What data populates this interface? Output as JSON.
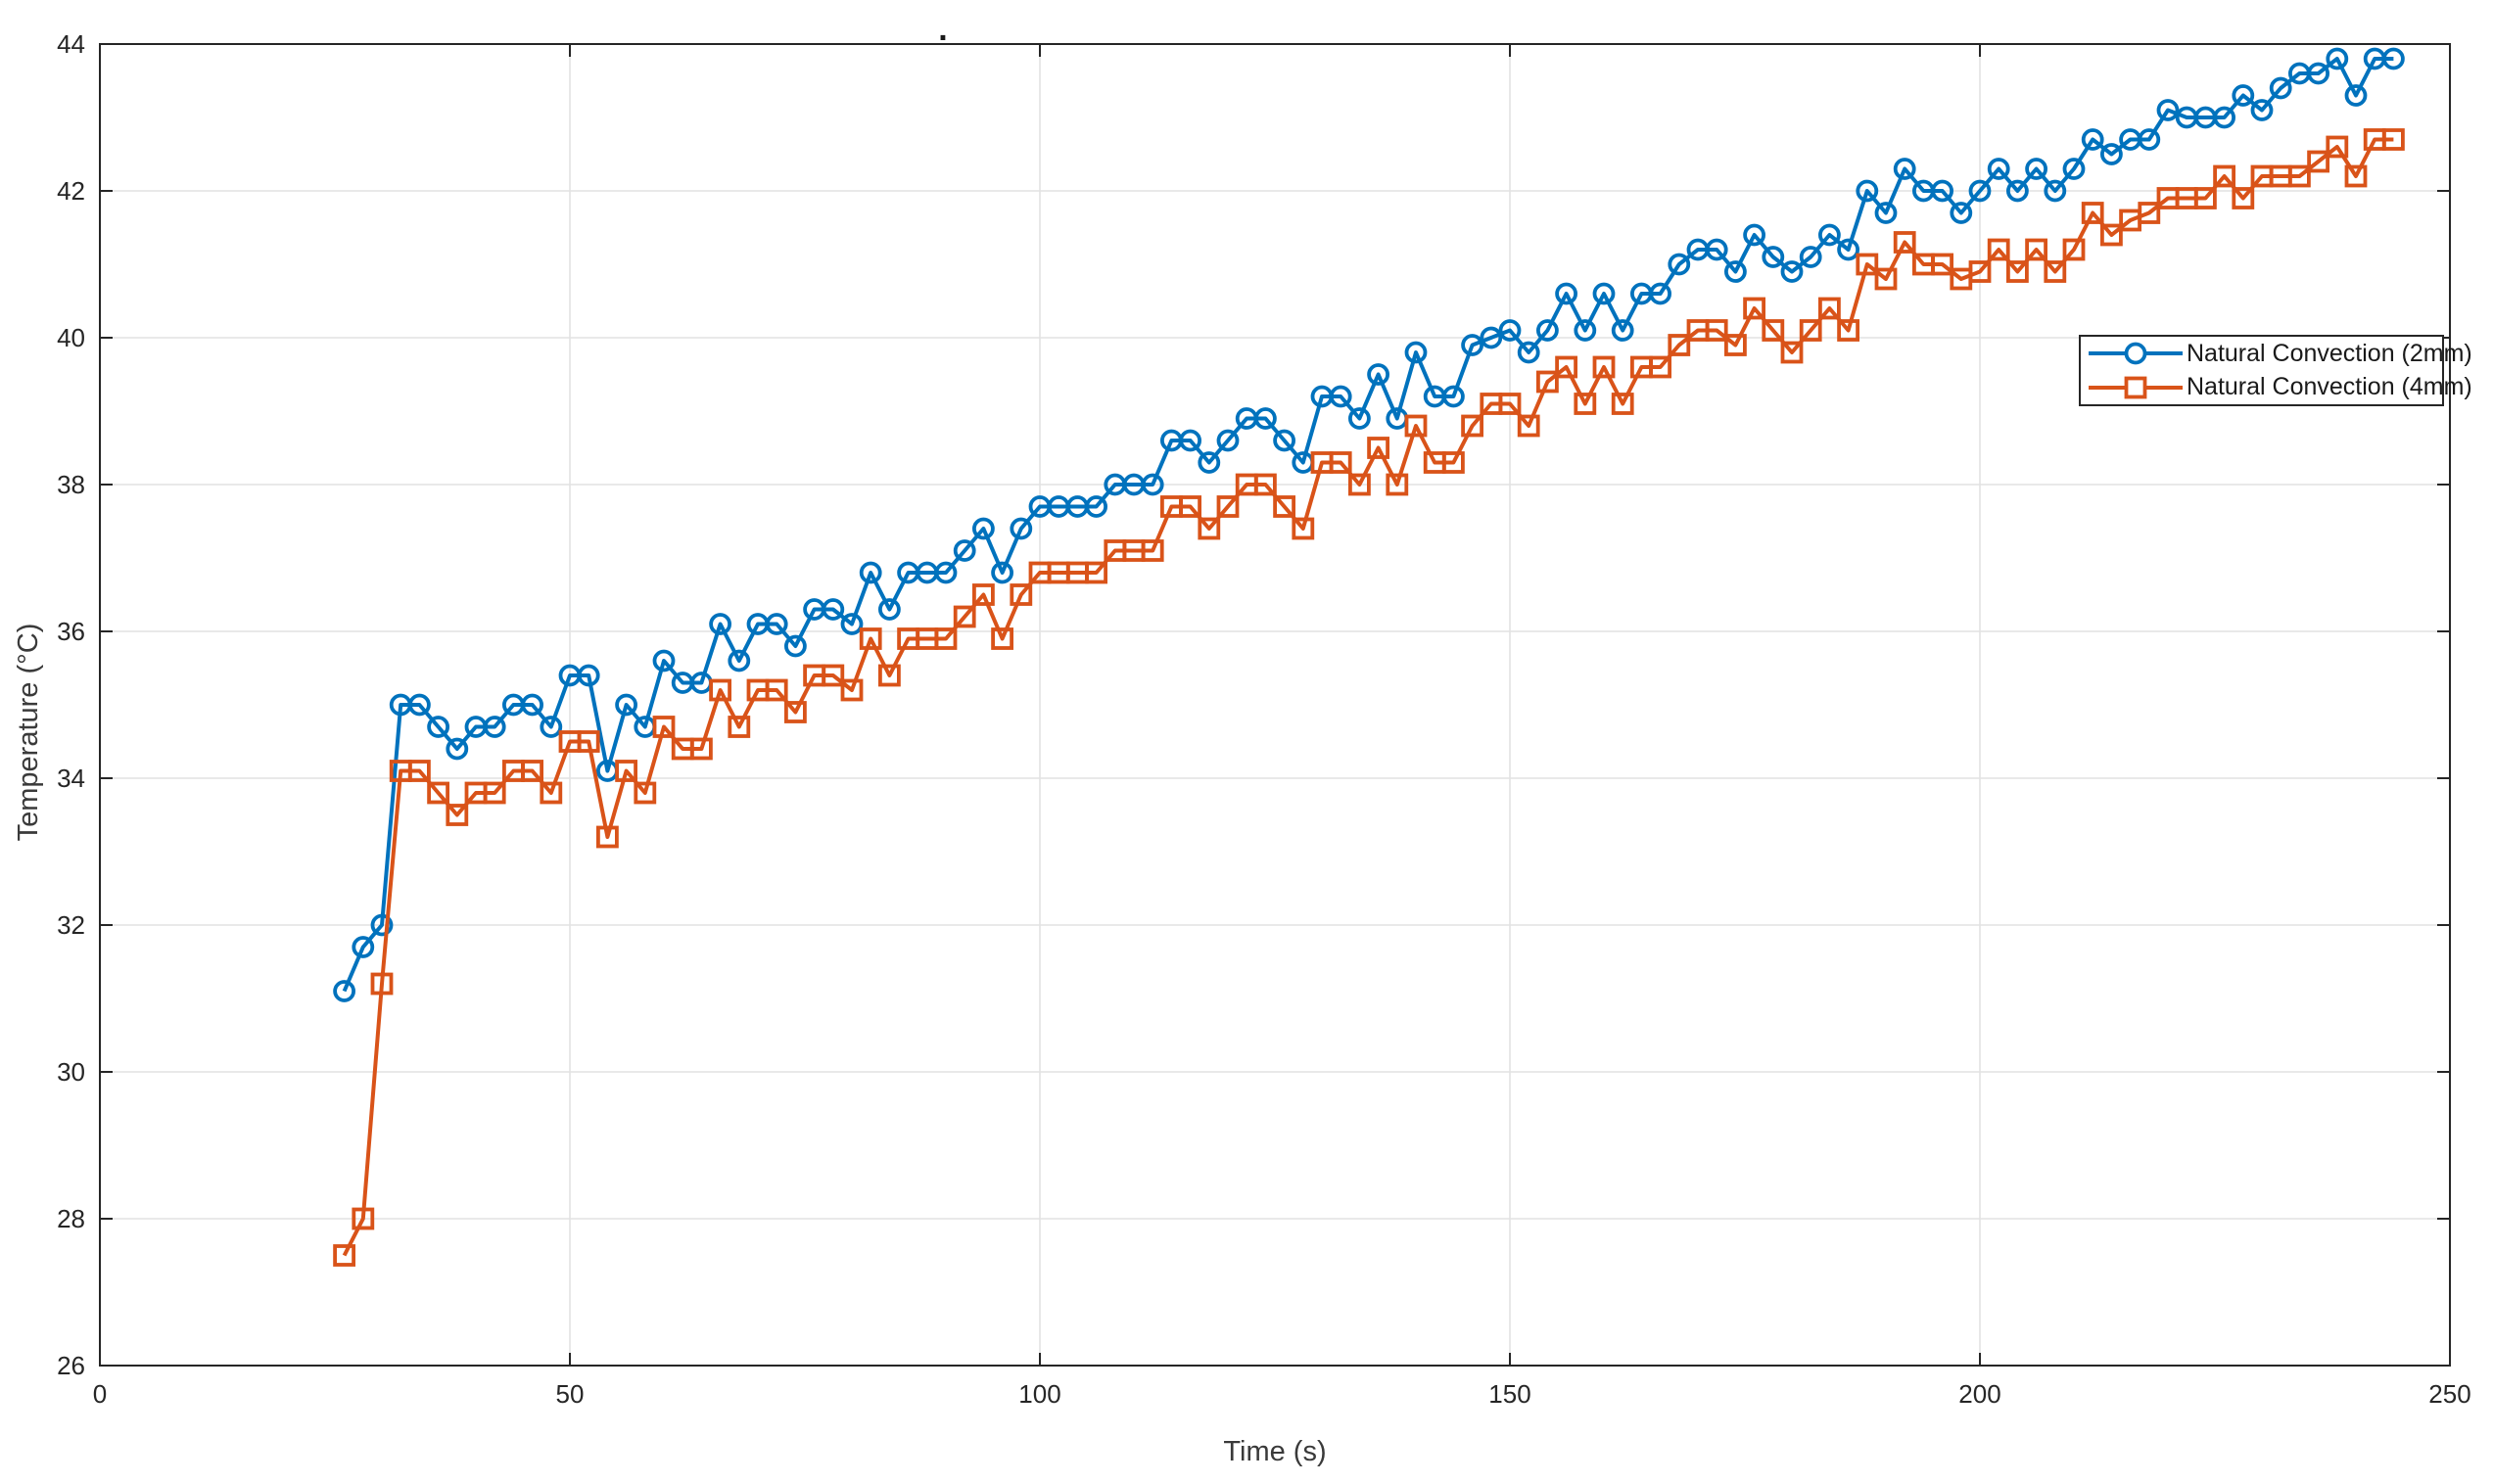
{
  "figure": {
    "title_dot": ".",
    "xlabel": "Time (s)",
    "ylabel": "Temperature (°C)"
  },
  "legend": {
    "entries": [
      {
        "label": "Natural Convection (2mm)",
        "color": "#0072BD",
        "marker": "circle"
      },
      {
        "label": "Natural Convection (4mm)",
        "color": "#D95319",
        "marker": "square"
      }
    ]
  },
  "chart_data": {
    "type": "line",
    "title": ".",
    "xlabel": "Time (s)",
    "ylabel": "Temperature (°C)",
    "xlim": [
      0,
      250
    ],
    "ylim": [
      26,
      44
    ],
    "xticks": [
      0,
      50,
      100,
      150,
      200,
      250
    ],
    "yticks": [
      26,
      28,
      30,
      32,
      34,
      36,
      38,
      40,
      42,
      44
    ],
    "grid": true,
    "legend_position": "inside-right-upper-middle",
    "grid_color": "#E2E2E2",
    "axis_color": "#262626",
    "x": [
      26,
      28,
      30,
      32,
      34,
      36,
      38,
      40,
      42,
      44,
      46,
      48,
      50,
      52,
      54,
      56,
      58,
      60,
      62,
      64,
      66,
      68,
      70,
      72,
      74,
      76,
      78,
      80,
      82,
      84,
      86,
      88,
      90,
      92,
      94,
      96,
      98,
      100,
      102,
      104,
      106,
      108,
      110,
      112,
      114,
      116,
      118,
      120,
      122,
      124,
      126,
      128,
      130,
      132,
      134,
      136,
      138,
      140,
      142,
      144,
      146,
      148,
      150,
      152,
      154,
      156,
      158,
      160,
      162,
      164,
      166,
      168,
      170,
      172,
      174,
      176,
      178,
      180,
      182,
      184,
      186,
      188,
      190,
      192,
      194,
      196,
      198,
      200,
      202,
      204,
      206,
      208,
      210,
      212,
      214,
      216,
      218,
      220,
      222,
      224,
      226,
      228,
      230,
      232,
      234,
      236,
      238,
      240,
      242,
      244
    ],
    "series": [
      {
        "name": "Natural Convection (2mm)",
        "color": "#0072BD",
        "marker": "circle",
        "values": [
          31.1,
          31.7,
          32.0,
          35.0,
          35.0,
          34.7,
          34.4,
          34.7,
          34.7,
          35.0,
          35.0,
          34.7,
          35.4,
          35.4,
          34.1,
          35.0,
          34.7,
          35.6,
          35.3,
          35.3,
          36.1,
          35.6,
          36.1,
          36.1,
          35.8,
          36.3,
          36.3,
          36.1,
          36.8,
          36.3,
          36.8,
          36.8,
          36.8,
          37.1,
          37.4,
          36.8,
          37.4,
          37.7,
          37.7,
          37.7,
          37.7,
          38.0,
          38.0,
          38.0,
          38.6,
          38.6,
          38.3,
          38.6,
          38.9,
          38.9,
          38.6,
          38.3,
          39.2,
          39.2,
          38.9,
          39.5,
          38.9,
          39.8,
          39.2,
          39.2,
          39.9,
          40.0,
          40.1,
          39.8,
          40.1,
          40.6,
          40.1,
          40.6,
          40.1,
          40.6,
          40.6,
          41.0,
          41.2,
          41.2,
          40.9,
          41.4,
          41.1,
          40.9,
          41.1,
          41.4,
          41.2,
          42.0,
          41.7,
          42.3,
          42.0,
          42.0,
          41.7,
          42.0,
          42.3,
          42.0,
          42.3,
          42.0,
          42.3,
          42.7,
          42.5,
          42.7,
          42.7,
          43.1,
          43.0,
          43.0,
          43.0,
          43.3,
          43.1,
          43.4,
          43.6,
          43.6,
          43.8,
          43.3,
          43.8,
          43.8
        ]
      },
      {
        "name": "Natural Convection (4mm)",
        "color": "#D95319",
        "marker": "square",
        "values": [
          27.5,
          28.0,
          31.2,
          34.1,
          34.1,
          33.8,
          33.5,
          33.8,
          33.8,
          34.1,
          34.1,
          33.8,
          34.5,
          34.5,
          33.2,
          34.1,
          33.8,
          34.7,
          34.4,
          34.4,
          35.2,
          34.7,
          35.2,
          35.2,
          34.9,
          35.4,
          35.4,
          35.2,
          35.9,
          35.4,
          35.9,
          35.9,
          35.9,
          36.2,
          36.5,
          35.9,
          36.5,
          36.8,
          36.8,
          36.8,
          36.8,
          37.1,
          37.1,
          37.1,
          37.7,
          37.7,
          37.4,
          37.7,
          38.0,
          38.0,
          37.7,
          37.4,
          38.3,
          38.3,
          38.0,
          38.5,
          38.0,
          38.8,
          38.3,
          38.3,
          38.8,
          39.1,
          39.1,
          38.8,
          39.4,
          39.6,
          39.1,
          39.6,
          39.1,
          39.6,
          39.6,
          39.9,
          40.1,
          40.1,
          39.9,
          40.4,
          40.1,
          39.8,
          40.1,
          40.4,
          40.1,
          41.0,
          40.8,
          41.3,
          41.0,
          41.0,
          40.8,
          40.9,
          41.2,
          40.9,
          41.2,
          40.9,
          41.2,
          41.7,
          41.4,
          41.6,
          41.7,
          41.9,
          41.9,
          41.9,
          42.2,
          41.9,
          42.2,
          42.2,
          42.2,
          42.4,
          42.6,
          42.2,
          42.7,
          42.7
        ]
      }
    ]
  }
}
